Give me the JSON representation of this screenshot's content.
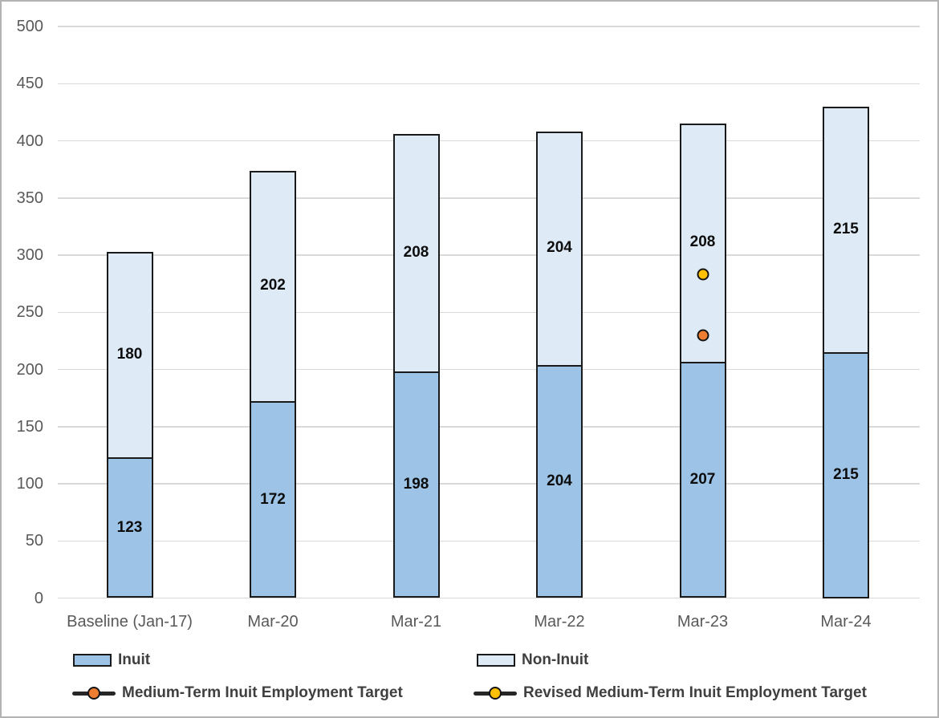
{
  "chart_data": {
    "type": "bar",
    "stacked": true,
    "title": "",
    "xlabel": "",
    "ylabel": "",
    "categories": [
      "Baseline (Jan-17)",
      "Mar-20",
      "Mar-21",
      "Mar-22",
      "Mar-23",
      "Mar-24"
    ],
    "series": [
      {
        "name": "Inuit",
        "color": "#9DC3E6",
        "values": [
          123,
          172,
          198,
          204,
          207,
          215
        ]
      },
      {
        "name": "Non-Inuit",
        "color": "#DEEAF6",
        "values": [
          180,
          202,
          208,
          204,
          208,
          215
        ]
      }
    ],
    "point_series": [
      {
        "name": "Medium-Term Inuit Employment Target",
        "color": "#ED7D31",
        "points": [
          {
            "category": "Mar-23",
            "value": 230
          }
        ]
      },
      {
        "name": "Revised Medium-Term Inuit Employment Target",
        "color": "#FFC000",
        "points": [
          {
            "category": "Mar-23",
            "value": 283
          }
        ]
      }
    ],
    "ylim": [
      0,
      500
    ],
    "ytick_step": 50,
    "ytick_labels": [
      "0",
      "50",
      "100",
      "150",
      "200",
      "250",
      "300",
      "350",
      "400",
      "450",
      "500"
    ],
    "grid": true,
    "legend_position": "bottom",
    "legend": [
      {
        "label": "Inuit",
        "swatch": "box",
        "color": "#9DC3E6"
      },
      {
        "label": "Non-Inuit",
        "swatch": "box",
        "color": "#DEEAF6"
      },
      {
        "label": "Medium-Term Inuit Employment Target",
        "swatch": "line-marker",
        "color": "#ED7D31"
      },
      {
        "label": "Revised Medium-Term Inuit Employment Target",
        "swatch": "line-marker",
        "color": "#FFC000"
      }
    ]
  }
}
